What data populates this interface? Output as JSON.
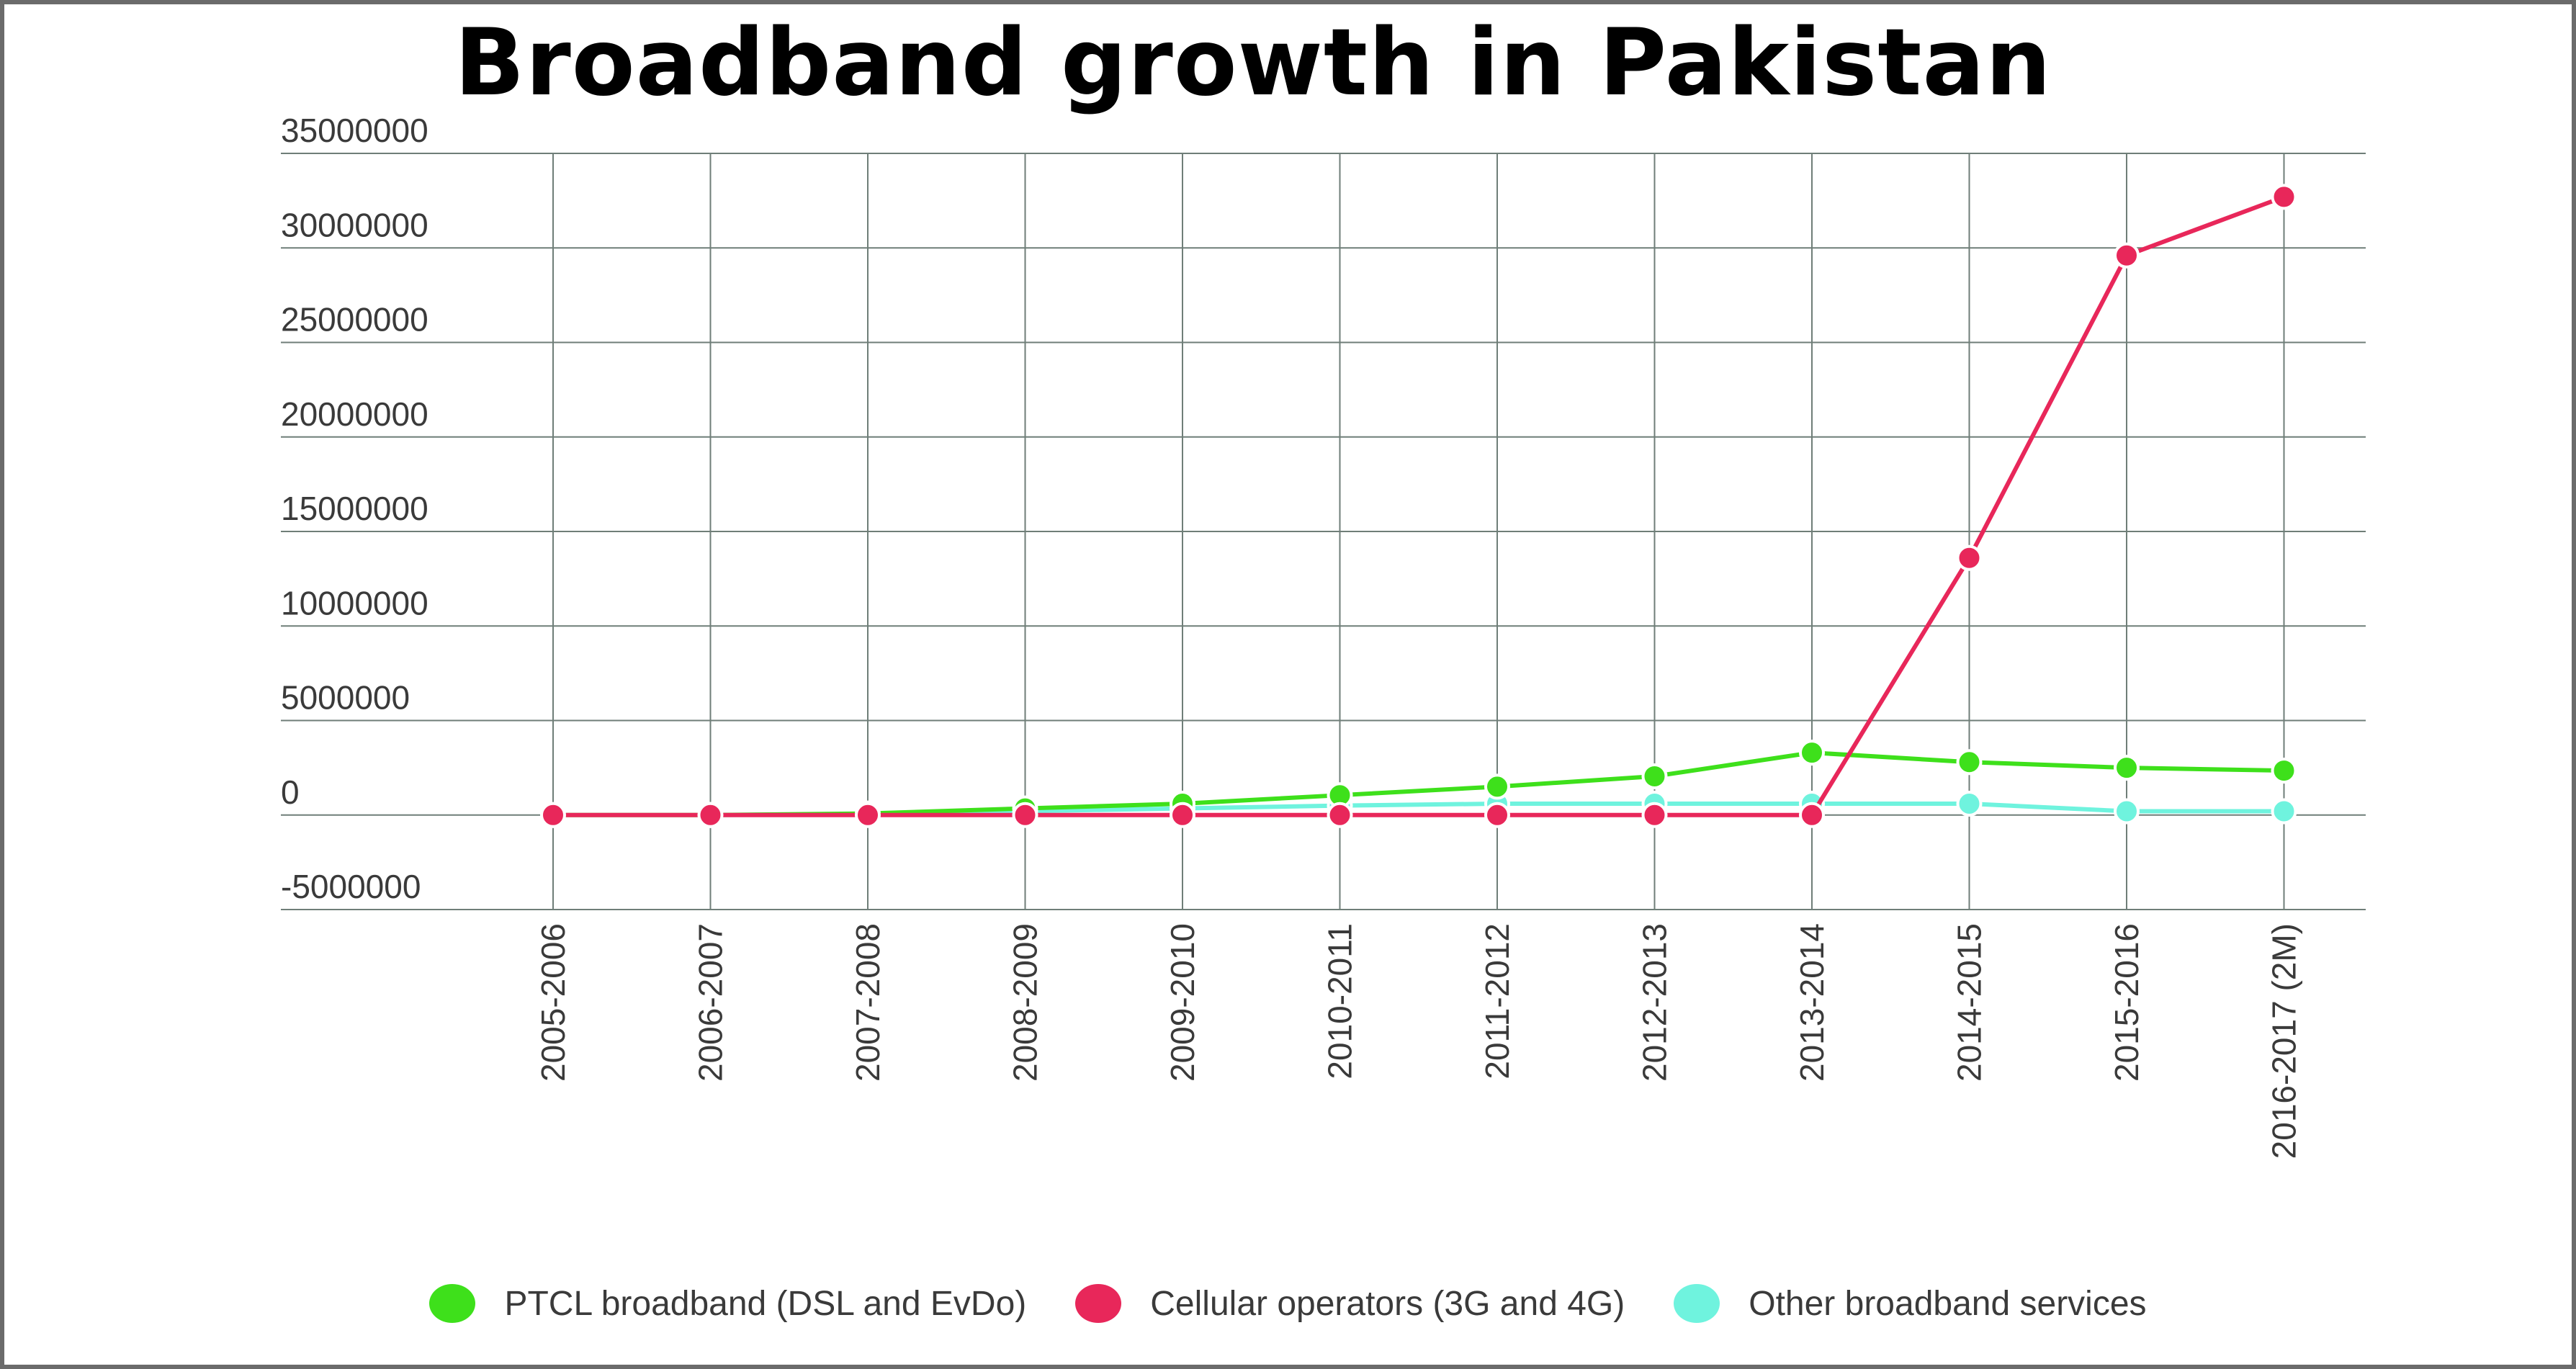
{
  "chart_data": {
    "type": "line",
    "title": "Broadband growth in Pakistan",
    "xlabel": "",
    "ylabel": "",
    "categories": [
      "2005-2006",
      "2006-2007",
      "2007-2008",
      "2008-2009",
      "2009-2010",
      "2010-2011",
      "2011-2012",
      "2012-2013",
      "2013-2014",
      "2014-2015",
      "2015-2016",
      "2016-2017 (2M)"
    ],
    "ylim": [
      -5000000,
      35000000
    ],
    "yticks": [
      35000000,
      30000000,
      25000000,
      20000000,
      15000000,
      10000000,
      5000000,
      0,
      -5000000
    ],
    "grid": true,
    "legend_position": "bottom",
    "series": [
      {
        "name": "PTCL broadband (DSL and EvDo)",
        "color": "#3ee01b",
        "values": [
          0,
          0,
          80000,
          350000,
          600000,
          1050000,
          1500000,
          2050000,
          3300000,
          2800000,
          2500000,
          2350000
        ]
      },
      {
        "name": "Cellular operators (3G and 4G)",
        "color": "#e8275a",
        "values": [
          0,
          0,
          0,
          0,
          0,
          0,
          0,
          0,
          0,
          13600000,
          29600000,
          32700000
        ]
      },
      {
        "name": "Other broadband services",
        "color": "#6ff3de",
        "values": [
          null,
          0,
          50000,
          200000,
          350000,
          500000,
          600000,
          600000,
          600000,
          600000,
          200000,
          200000
        ]
      }
    ]
  }
}
